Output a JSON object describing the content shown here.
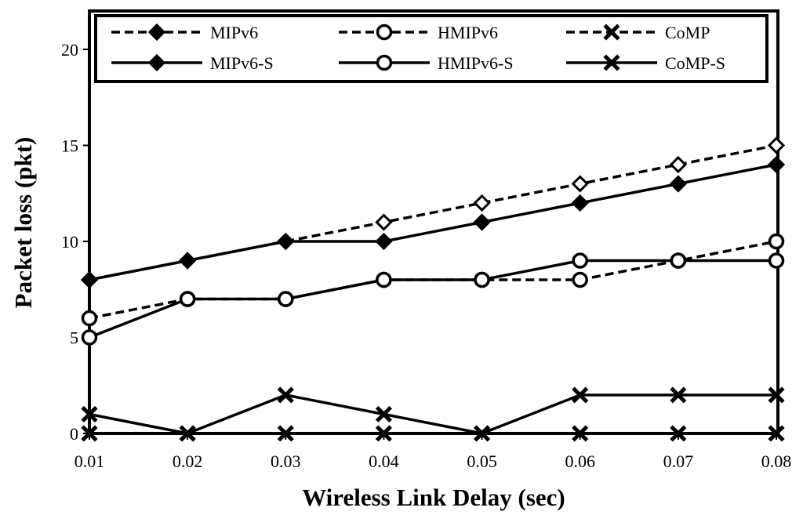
{
  "chart_data": {
    "type": "line",
    "xlabel": "Wireless Link Delay (sec)",
    "ylabel": "Packet loss (pkt)",
    "x": [
      0.01,
      0.02,
      0.03,
      0.04,
      0.05,
      0.06,
      0.07,
      0.08
    ],
    "x_tick_labels": [
      "0.01",
      "0.02",
      "0.03",
      "0.04",
      "0.05",
      "0.06",
      "0.07",
      "0.08"
    ],
    "y_ticks": [
      0,
      5,
      10,
      15,
      20
    ],
    "ylim": [
      0,
      22
    ],
    "grid": false,
    "legend_position": "top",
    "series": [
      {
        "name": "MIPv6",
        "style": "dashed",
        "marker": "diamond",
        "values": [
          8,
          9,
          10,
          11,
          12,
          13,
          14,
          15
        ]
      },
      {
        "name": "HMIPv6",
        "style": "dashed",
        "marker": "circle",
        "values": [
          6,
          7,
          7,
          8,
          8,
          8,
          9,
          10
        ]
      },
      {
        "name": "CoMP",
        "style": "dashed",
        "marker": "x",
        "values": [
          0,
          0,
          0,
          0,
          0,
          0,
          0,
          0
        ]
      },
      {
        "name": "MIPv6-S",
        "style": "solid",
        "marker": "diamond",
        "values": [
          8,
          9,
          10,
          10,
          11,
          12,
          13,
          14
        ]
      },
      {
        "name": "HMIPv6-S",
        "style": "solid",
        "marker": "circle",
        "values": [
          5,
          7,
          7,
          8,
          8,
          9,
          9,
          9
        ]
      },
      {
        "name": "CoMP-S",
        "style": "solid",
        "marker": "x",
        "values": [
          1,
          0,
          2,
          1,
          0,
          2,
          2,
          2
        ]
      }
    ]
  }
}
